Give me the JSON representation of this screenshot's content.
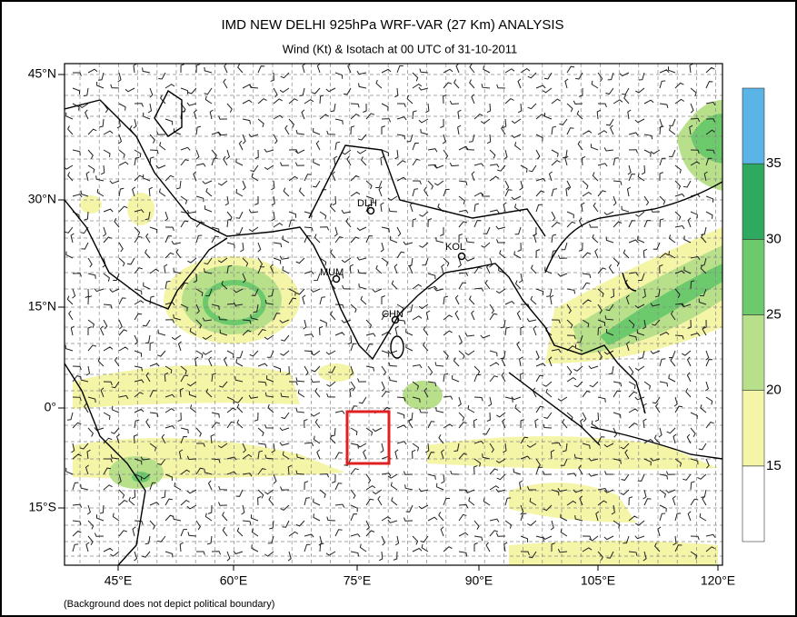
{
  "header": {
    "title": "IMD NEW DELHI 925hPa WRF-VAR (27 Km) ANALYSIS",
    "subtitle": "Wind (Kt) & Isotach at 00 UTC of 31-10-2011"
  },
  "map": {
    "lat_labels": [
      "45°N",
      "30°N",
      "15°N",
      "0°",
      "15°S"
    ],
    "lon_labels": [
      "45°E",
      "60°E",
      "75°E",
      "90°E",
      "105°E",
      "120°E"
    ],
    "stations": [
      "DLH",
      "KOL",
      "MUM",
      "CHN"
    ],
    "footnote": "(Background does not depict political boundary)"
  },
  "colorbar": {
    "labels": [
      "15",
      "20",
      "25",
      "30",
      "35"
    ],
    "colors": [
      "#ffffff",
      "#f5f5a8",
      "#b8e08a",
      "#6cca6c",
      "#2fa860",
      "#5ab4e6"
    ]
  }
}
